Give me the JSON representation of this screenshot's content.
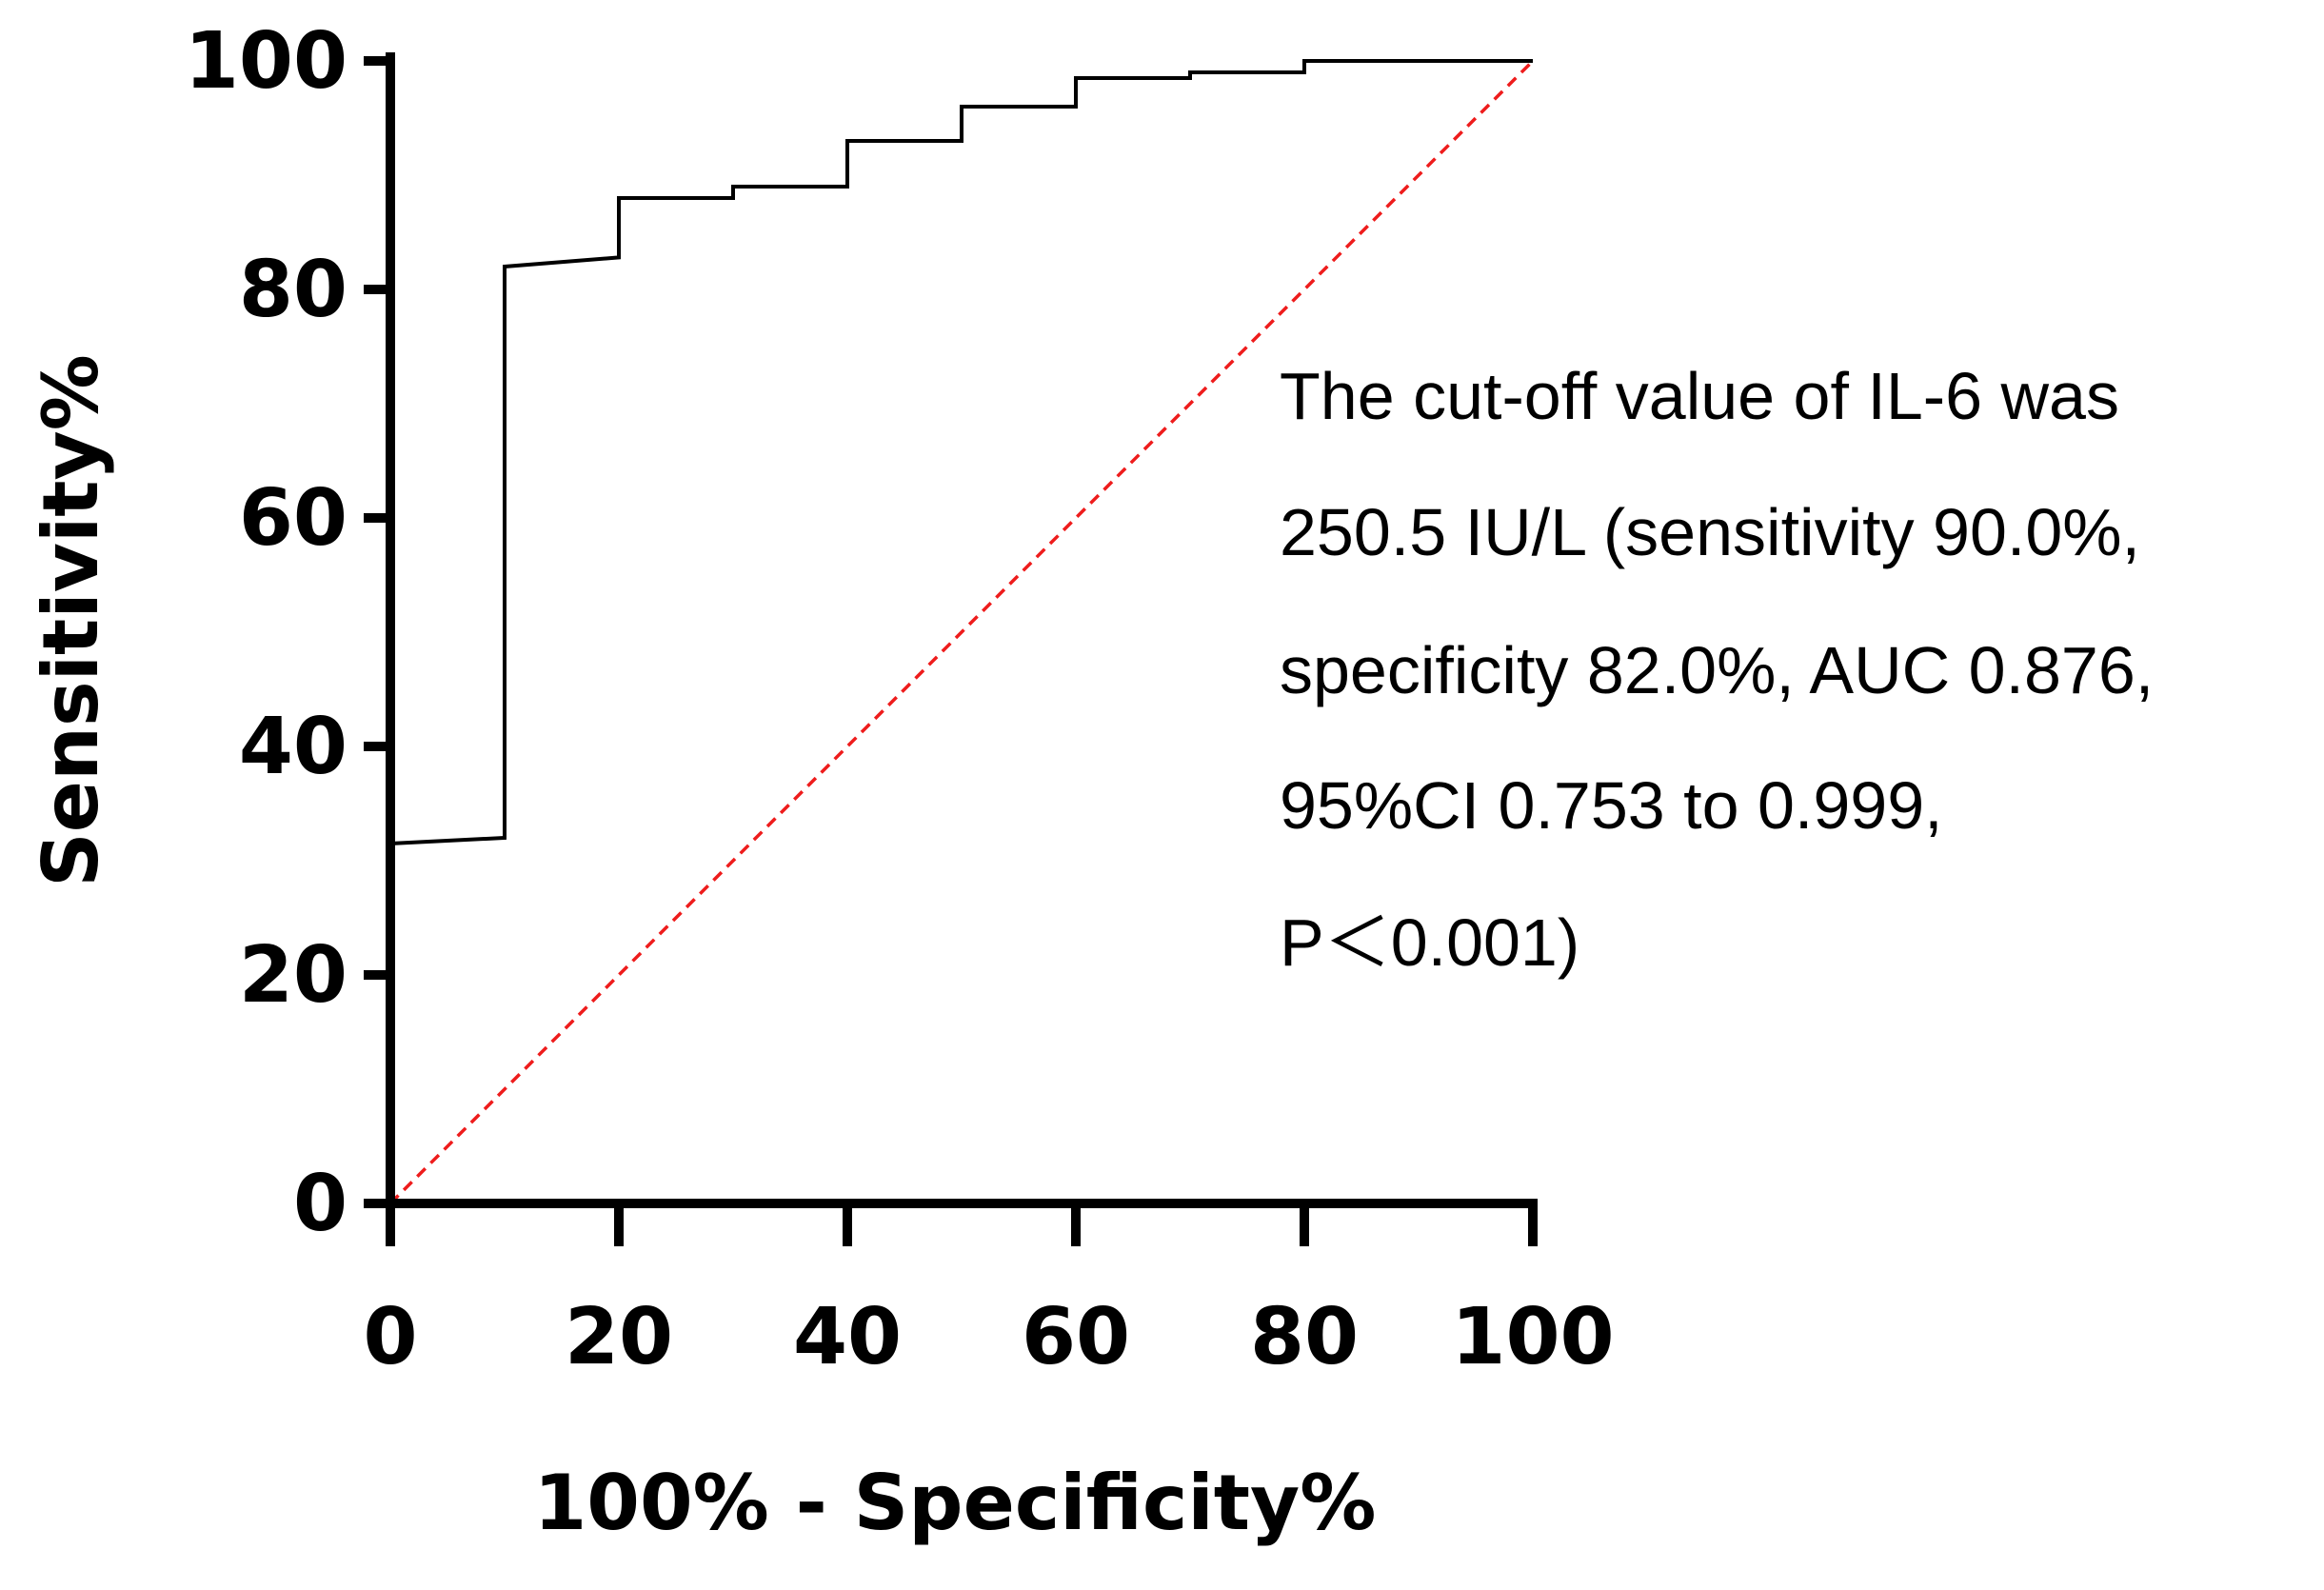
{
  "chart_data": {
    "type": "line",
    "title": "",
    "xlabel": "100% - Specificity%",
    "ylabel": "Sensitivity%",
    "xlim": [
      0,
      100
    ],
    "ylim": [
      0,
      100
    ],
    "x_ticks": [
      0,
      20,
      40,
      60,
      80,
      100
    ],
    "y_ticks": [
      0,
      20,
      40,
      60,
      80,
      100
    ],
    "x_tick_labels": [
      "0",
      "20",
      "40",
      "60",
      "80",
      "100"
    ],
    "y_tick_labels": [
      "0",
      "20",
      "40",
      "60",
      "80",
      "100"
    ],
    "grid": false,
    "series": [
      {
        "name": "IL-6 ROC curve",
        "style": "solid",
        "color": "#000000",
        "x": [
          0,
          10,
          10,
          20,
          20,
          30,
          30,
          40,
          40,
          50,
          50,
          60,
          60,
          70,
          70,
          80,
          80,
          100
        ],
        "y": [
          31.5,
          32,
          82,
          82.8,
          88,
          88,
          89,
          89,
          93,
          93,
          96,
          96,
          98.5,
          98.5,
          99,
          99,
          100,
          100
        ]
      },
      {
        "name": "Reference line",
        "style": "dashed",
        "color": "#ee1c1c",
        "x": [
          0,
          100
        ],
        "y": [
          0,
          100
        ]
      }
    ],
    "annotation": {
      "lines": [
        "The cut-off value of IL-6 was",
        "250.5 IU/L (sensitivity 90.0%,",
        "specificity 82.0%, AUC 0.876,",
        "95%CI 0.753 to 0.999,",
        "P＜0.001)"
      ]
    }
  }
}
